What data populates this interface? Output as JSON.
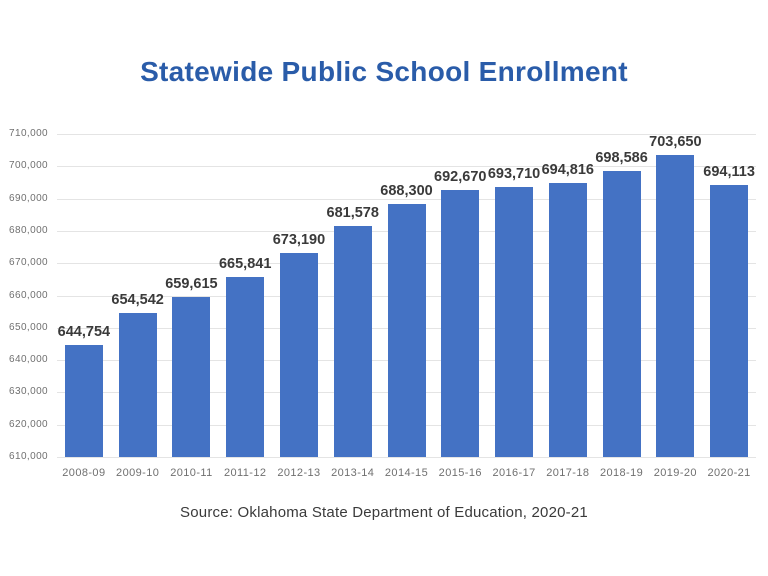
{
  "page": {
    "background": "#FFFFFF"
  },
  "chart_data": {
    "type": "bar",
    "title": "Statewide Public School Enrollment",
    "source": "Source: Oklahoma State Department of Education, 2020-21",
    "categories": [
      "2008-09",
      "2009-10",
      "2010-11",
      "2011-12",
      "2012-13",
      "2013-14",
      "2014-15",
      "2015-16",
      "2016-17",
      "2017-18",
      "2018-19",
      "2019-20",
      "2020-21"
    ],
    "values": [
      644754,
      654542,
      659615,
      665841,
      673190,
      681578,
      688300,
      692670,
      693710,
      694816,
      698586,
      703650,
      694113
    ],
    "value_labels": [
      "644,754",
      "654,542",
      "659,615",
      "665,841",
      "673,190",
      "681,578",
      "688,300",
      "692,670",
      "693,710",
      "694,816",
      "698,586",
      "703,650",
      "694,113"
    ],
    "yticks": [
      "710,000",
      "700,000",
      "690,000",
      "680,000",
      "670,000",
      "660,000",
      "650,000",
      "640,000",
      "630,000",
      "620,000",
      "610,000"
    ],
    "ylim": [
      610000,
      710000
    ],
    "xlabel": "",
    "ylabel": "",
    "grid": "horizontal",
    "legend": "none",
    "colors": {
      "bar": "#4472C4",
      "title": "#2A5CA9",
      "value_label": "#3A3A3A",
      "axis_label": "#707070",
      "gridline": "#E4E4E4",
      "source": "#3A3A3A"
    }
  }
}
